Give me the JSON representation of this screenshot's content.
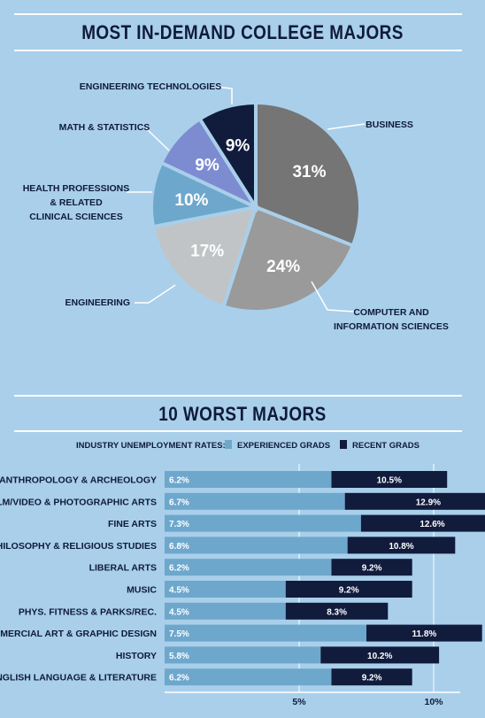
{
  "pie_section": {
    "title": "MOST IN-DEMAND COLLEGE MAJORS"
  },
  "bar_section": {
    "title": "10 WORST MAJORS",
    "legend_intro": "INDUSTRY UNEMPLOYMENT RATES:",
    "legend_experienced": "EXPERIENCED GRADS",
    "legend_recent": "RECENT GRADS"
  },
  "colors": {
    "background": "#a9cfea",
    "title_text": "#0f1a3a",
    "navy": "#0f1a3a",
    "experienced": "#6ea7cc",
    "recent": "#111b3c"
  },
  "chart_data": [
    {
      "type": "pie",
      "title": "MOST IN-DEMAND COLLEGE MAJORS",
      "slices": [
        {
          "label": "BUSINESS",
          "value": 31,
          "value_label": "31%",
          "color": "#757575"
        },
        {
          "label": "COMPUTER AND INFORMATION SCIENCES",
          "value": 24,
          "value_label": "24%",
          "color": "#9a9a9a"
        },
        {
          "label": "ENGINEERING",
          "value": 17,
          "value_label": "17%",
          "color": "#c1c4c6"
        },
        {
          "label": "HEALTH PROFESSIONS & RELATED CLINICAL SCIENCES",
          "value": 10,
          "value_label": "10%",
          "color": "#6ea7cc"
        },
        {
          "label": "MATH & STATISTICS",
          "value": 9,
          "value_label": "9%",
          "color": "#7d8bd0"
        },
        {
          "label": "ENGINEERING TECHNOLOGIES",
          "value": 9,
          "value_label": "9%",
          "color": "#111b3c"
        }
      ]
    },
    {
      "type": "bar",
      "title": "10 WORST MAJORS",
      "categories": [
        "ANTHROPOLOGY & ARCHEOLOGY",
        "FILM/VIDEO & PHOTOGRAPHIC ARTS",
        "FINE ARTS",
        "PHILOSOPHY & RELIGIOUS STUDIES",
        "LIBERAL ARTS",
        "MUSIC",
        "PHYS. FITNESS & PARKS/REC.",
        "COMMERCIAL ART & GRAPHIC DESIGN",
        "HISTORY",
        "ENGLISH LANGUAGE & LITERATURE"
      ],
      "series": [
        {
          "name": "EXPERIENCED GRADS",
          "values": [
            6.2,
            6.7,
            7.3,
            6.8,
            6.2,
            4.5,
            4.5,
            7.5,
            5.8,
            6.2
          ],
          "labels": [
            "6.2%",
            "6.7%",
            "7.3%",
            "6.8%",
            "6.2%",
            "4.5%",
            "4.5%",
            "7.5%",
            "5.8%",
            "6.2%"
          ]
        },
        {
          "name": "RECENT GRADS",
          "values": [
            10.5,
            12.9,
            12.6,
            10.8,
            9.2,
            9.2,
            8.3,
            11.8,
            10.2,
            9.2
          ],
          "labels": [
            "10.5%",
            "12.9%",
            "12.6%",
            "10.8%",
            "9.2%",
            "9.2%",
            "8.3%",
            "11.8%",
            "10.2%",
            "9.2%"
          ]
        }
      ],
      "x_ticks": [
        5,
        10
      ],
      "x_tick_labels": [
        "5%",
        "10%"
      ],
      "xlim": [
        0,
        13.5
      ]
    }
  ]
}
